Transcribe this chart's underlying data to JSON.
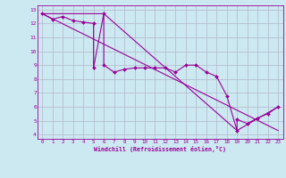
{
  "xlabel": "Windchill (Refroidissement éolien,°C)",
  "bg_color": "#cce8f0",
  "line_color": "#990099",
  "grid_color": "#b0b8cc",
  "xlim": [
    -0.5,
    23.5
  ],
  "ylim": [
    3.7,
    13.3
  ],
  "yticks": [
    4,
    5,
    6,
    7,
    8,
    9,
    10,
    11,
    12,
    13
  ],
  "xticks": [
    0,
    1,
    2,
    3,
    4,
    5,
    6,
    7,
    8,
    9,
    10,
    11,
    12,
    13,
    14,
    15,
    16,
    17,
    18,
    19,
    20,
    21,
    22,
    23
  ],
  "series": [
    [
      0,
      12.7
    ],
    [
      1,
      12.3
    ],
    [
      2,
      12.5
    ],
    [
      3,
      12.2
    ],
    [
      4,
      12.1
    ],
    [
      5,
      12.0
    ],
    [
      5,
      8.8
    ],
    [
      6,
      12.7
    ],
    [
      6,
      9.0
    ],
    [
      7,
      8.5
    ],
    [
      8,
      8.7
    ],
    [
      9,
      8.8
    ],
    [
      10,
      8.8
    ],
    [
      11,
      8.8
    ],
    [
      12,
      8.8
    ],
    [
      13,
      8.5
    ],
    [
      14,
      9.0
    ],
    [
      15,
      9.0
    ],
    [
      16,
      8.5
    ],
    [
      17,
      8.2
    ],
    [
      18,
      6.8
    ],
    [
      19,
      4.3
    ],
    [
      19,
      5.1
    ],
    [
      20,
      4.8
    ],
    [
      21,
      5.2
    ],
    [
      22,
      5.5
    ],
    [
      23,
      6.0
    ]
  ],
  "line1_x": [
    0,
    23
  ],
  "line1_y": [
    12.7,
    4.3
  ],
  "line2_x": [
    0,
    6,
    19,
    23
  ],
  "line2_y": [
    12.7,
    12.7,
    4.3,
    6.0
  ]
}
